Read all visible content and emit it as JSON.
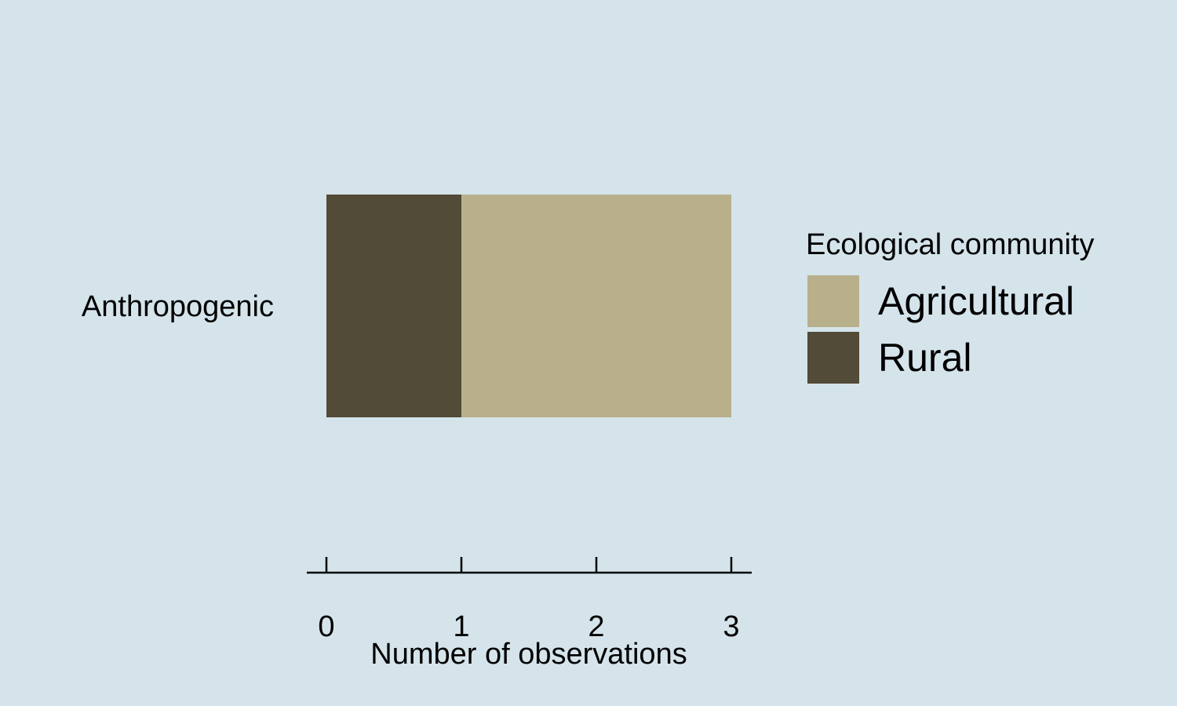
{
  "chart_data": {
    "type": "bar",
    "orientation": "horizontal",
    "stacked": true,
    "categories": [
      "Anthropogenic"
    ],
    "series": [
      {
        "name": "Rural",
        "values": [
          1
        ],
        "color": "#524b37"
      },
      {
        "name": "Agricultural",
        "values": [
          2
        ],
        "color": "#b8af8b"
      }
    ],
    "xlabel": "Number of observations",
    "ylabel": "",
    "xlim": [
      0,
      3
    ],
    "xticks": [
      "0",
      "1",
      "2",
      "3"
    ],
    "grid": false,
    "legend": {
      "title": "Ecological community",
      "position": "right",
      "entries": [
        "Agricultural",
        "Rural"
      ]
    },
    "background_color": "#d5e4eb"
  }
}
